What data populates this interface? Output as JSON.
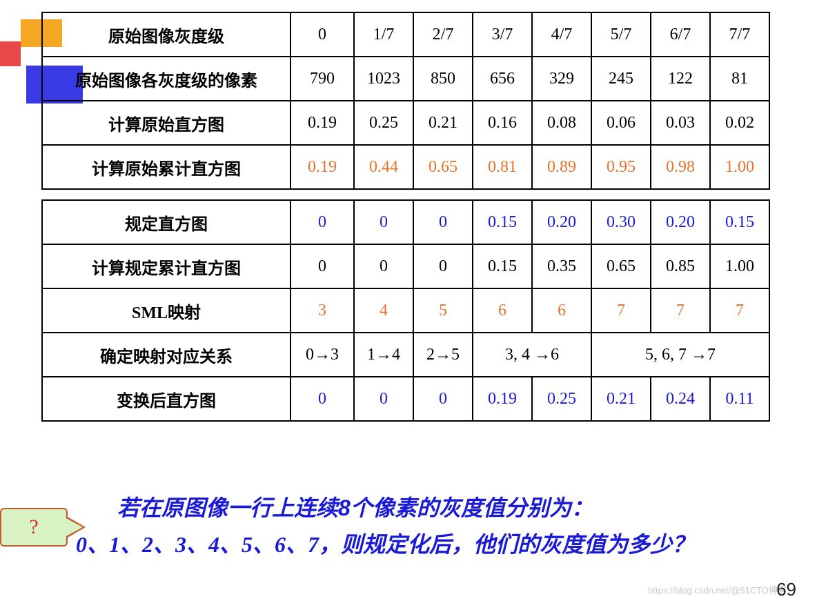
{
  "decor": {
    "orange": "#f5a623",
    "blue": "#3a3ae6",
    "red": "#e84a4a"
  },
  "table": {
    "rows": [
      {
        "label": "原始图像灰度级",
        "labelColor": "black",
        "cells": [
          "0",
          "1/7",
          "2/7",
          "3/7",
          "4/7",
          "5/7",
          "6/7",
          "7/7"
        ],
        "color": "black"
      },
      {
        "label": "原始图像各灰度级的像素",
        "labelColor": "black",
        "cells": [
          "790",
          "1023",
          "850",
          "656",
          "329",
          "245",
          "122",
          "81"
        ],
        "color": "black"
      },
      {
        "label": "计算原始直方图",
        "labelColor": "black",
        "cells": [
          "0.19",
          "0.25",
          "0.21",
          "0.16",
          "0.08",
          "0.06",
          "0.03",
          "0.02"
        ],
        "color": "black"
      },
      {
        "label": "计算原始累计直方图",
        "labelColor": "black",
        "cells": [
          "0.19",
          "0.44",
          "0.65",
          "0.81",
          "0.89",
          "0.95",
          "0.98",
          "1.00"
        ],
        "color": "orange"
      },
      {
        "label": "规定直方图",
        "labelColor": "black",
        "cells": [
          "0",
          "0",
          "0",
          "0.15",
          "0.20",
          "0.30",
          "0.20",
          "0.15"
        ],
        "color": "blue"
      },
      {
        "label": "计算规定累计直方图",
        "labelColor": "black",
        "cells": [
          "0",
          "0",
          "0",
          "0.15",
          "0.35",
          "0.65",
          "0.85",
          "1.00"
        ],
        "color": "black"
      },
      {
        "label": "SML映射",
        "labelColor": "black",
        "cells": [
          "3",
          "4",
          "5",
          "6",
          "6",
          "7",
          "7",
          "7"
        ],
        "color": "orange"
      },
      {
        "label": "确定映射对应关系",
        "labelColor": "black",
        "mapping": [
          {
            "text": "0→3",
            "span": 1
          },
          {
            "text": "1→4",
            "span": 1
          },
          {
            "text": "2→5",
            "span": 1
          },
          {
            "text": "3, 4 →6",
            "span": 2
          },
          {
            "text": "5, 6, 7 →7",
            "span": 3
          }
        ],
        "color": "black"
      },
      {
        "label": "变换后直方图",
        "labelColor": "black",
        "cells": [
          "0",
          "0",
          "0",
          "0.19",
          "0.25",
          "0.21",
          "0.24",
          "0.11"
        ],
        "color": "blue"
      }
    ],
    "spacerAfter": 3
  },
  "question": {
    "mark": "?",
    "line1_a": "若在原图像一行上连续",
    "line1_b": "8",
    "line1_c": "个像素的灰度值分别为：",
    "line2": "0、1、2、3、4、5、6、7，则规定化后，他们的灰度值为多少？"
  },
  "slideNumber": "69",
  "watermark": "https://blog.csdn.net/@51CTO博客"
}
